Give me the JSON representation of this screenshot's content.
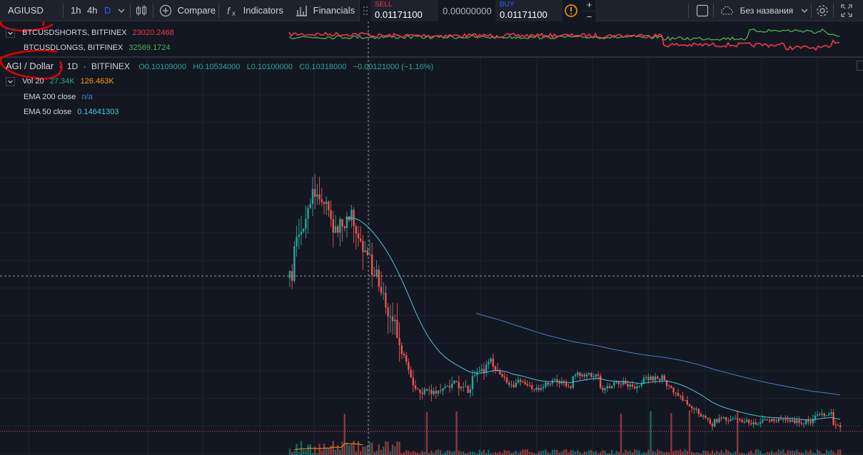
{
  "toolbar": {
    "symbol": "AGIUSD",
    "intervals": [
      "1h",
      "4h",
      "D"
    ],
    "active_interval": "D",
    "compare_label": "Compare",
    "indicators_label": "Indicators",
    "financials_label": "Financials",
    "sell_label": "SELL",
    "sell_price": "0.01171100",
    "spread": "0.00000000",
    "buy_label": "BUY",
    "buy_price": "0.01171100",
    "zoom_in": "+",
    "zoom_out": "−",
    "layout_name": "Без названия",
    "icons": [
      "candles-icon",
      "plus-circle-icon",
      "fx-icon",
      "bar-chart-icon",
      "drag-handle-icon",
      "warning-icon",
      "square-icon",
      "cloud-icon",
      "gear-icon",
      "fullscreen-icon"
    ]
  },
  "indicator_pane": {
    "shorts_label": "BTCUSDSHORTS, BITFINEX",
    "shorts_value": "23020.2468",
    "longs_label": "BTCUSDLONGS, BITFINEX",
    "longs_value": "32569.1724",
    "shorts_color": "#f23645",
    "longs_color": "#4caf50"
  },
  "main_chart": {
    "symbol_title": "AGI / Dollar",
    "interval": "1D",
    "exchange": "BITFINEX",
    "open": "O0.10109000",
    "high": "H0.10534000",
    "low": "L0.10100000",
    "close": "C0.10318000",
    "change": "−0.00121000 (−1.16%)",
    "vol_label": "Vol 20",
    "vol_value1": "27.34K",
    "vol_value2": "126.463K",
    "ema200_label": "EMA 200 close",
    "ema200_value": "n/a",
    "ema50_label": "EMA 50 close",
    "ema50_value": "0.14641303",
    "up_color": "#26a69a",
    "down_color": "#ef5350",
    "ema200_color": "#4a7cc9",
    "ema50_color": "#4fc3d9"
  }
}
